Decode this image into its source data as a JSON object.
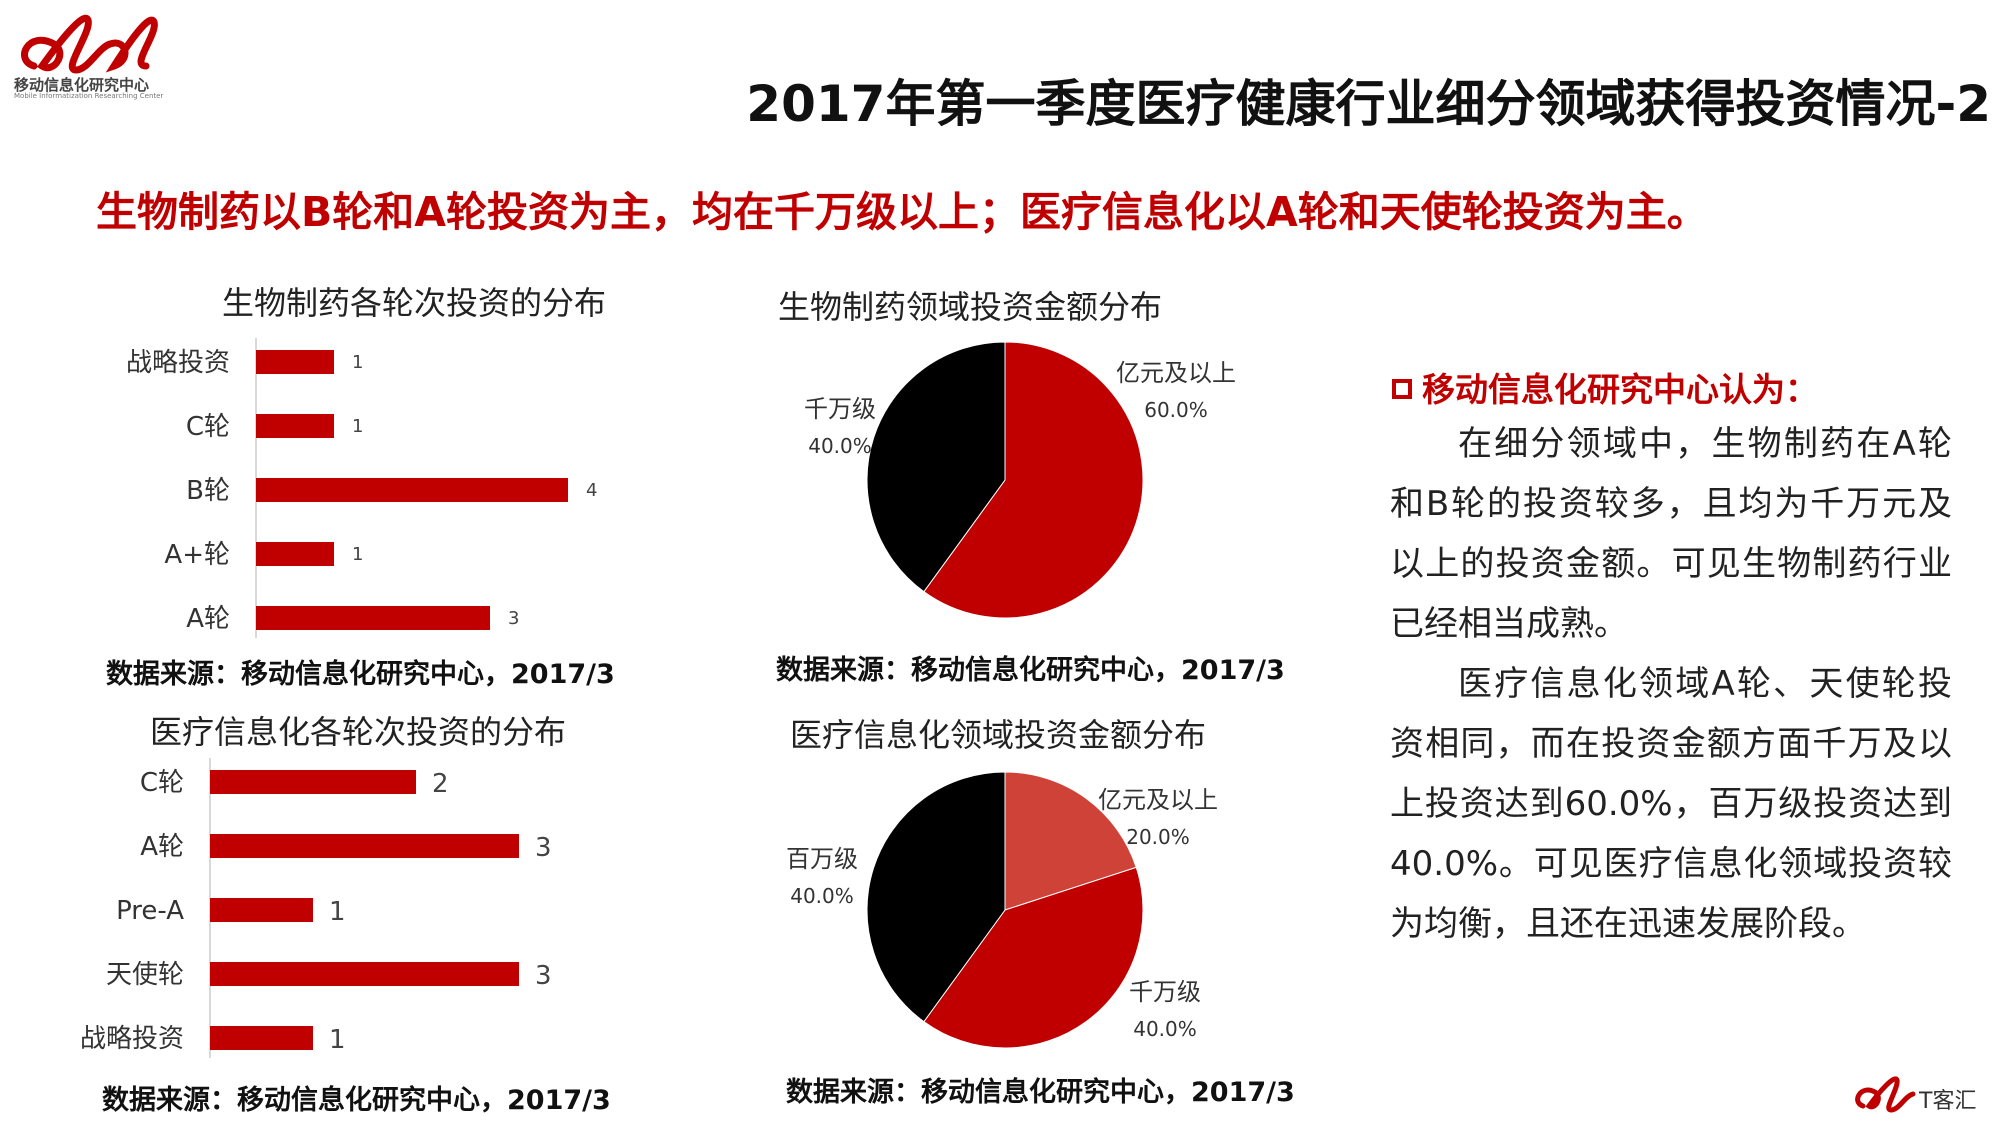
{
  "logo": {
    "cn": "移动信息化研究中心",
    "en": "Mobile Informatization Researching Center"
  },
  "title": "2017年第一季度医疗健康行业细分领域获得投资情况-2",
  "subtitle": "生物制药以B轮和A轮投资为主，均在千万级以上；医疗信息化以A轮和天使轮投资为主。",
  "source_label": "数据来源：移动信息化研究中心，2017/3",
  "colors": {
    "accent": "#c00000",
    "bar": "#c00000",
    "pie_black": "#000000",
    "pie_light_red": "#cf4238"
  },
  "chart_data": [
    {
      "type": "bar",
      "orientation": "horizontal",
      "title": "生物制药各轮次投资的分布",
      "categories": [
        "战略投资",
        "C轮",
        "B轮",
        "A+轮",
        "A轮"
      ],
      "values": [
        1,
        1,
        4,
        1,
        3
      ],
      "xlim": [
        0,
        5
      ],
      "grid": false
    },
    {
      "type": "bar",
      "orientation": "horizontal",
      "title": "医疗信息化各轮次投资的分布",
      "categories": [
        "C轮",
        "A轮",
        "Pre-A",
        "天使轮",
        "战略投资"
      ],
      "values": [
        2,
        3,
        1,
        3,
        1
      ],
      "xlim": [
        0,
        4
      ],
      "grid": false
    },
    {
      "type": "pie",
      "title": "生物制药领域投资金额分布",
      "slices": [
        {
          "label": "亿元及以上",
          "pct_label": "60.0%",
          "value": 60,
          "color": "#c00000"
        },
        {
          "label": "千万级",
          "pct_label": "40.0%",
          "value": 40,
          "color": "#000000"
        }
      ]
    },
    {
      "type": "pie",
      "title": "医疗信息化领域投资金额分布",
      "slices": [
        {
          "label": "亿元及以上",
          "pct_label": "20.0%",
          "value": 20,
          "color": "#cf4238"
        },
        {
          "label": "千万级",
          "pct_label": "40.0%",
          "value": 40,
          "color": "#c00000"
        },
        {
          "label": "百万级",
          "pct_label": "40.0%",
          "value": 40,
          "color": "#000000"
        }
      ]
    }
  ],
  "insight": {
    "heading": "移动信息化研究中心认为：",
    "paragraphs": [
      "在细分领域中，生物制药在A轮和B轮的投资较多，且均为千万元及以上的投资金额。可见生物制药行业已经相当成熟。",
      "医疗信息化领域A轮、天使轮投资相同，而在投资金额方面千万及以上投资达到60.0%，百万级投资达到40.0%。可见医疗信息化领域投资较为均衡，且还在迅速发展阶段。"
    ]
  },
  "brand_footer": "T客汇"
}
